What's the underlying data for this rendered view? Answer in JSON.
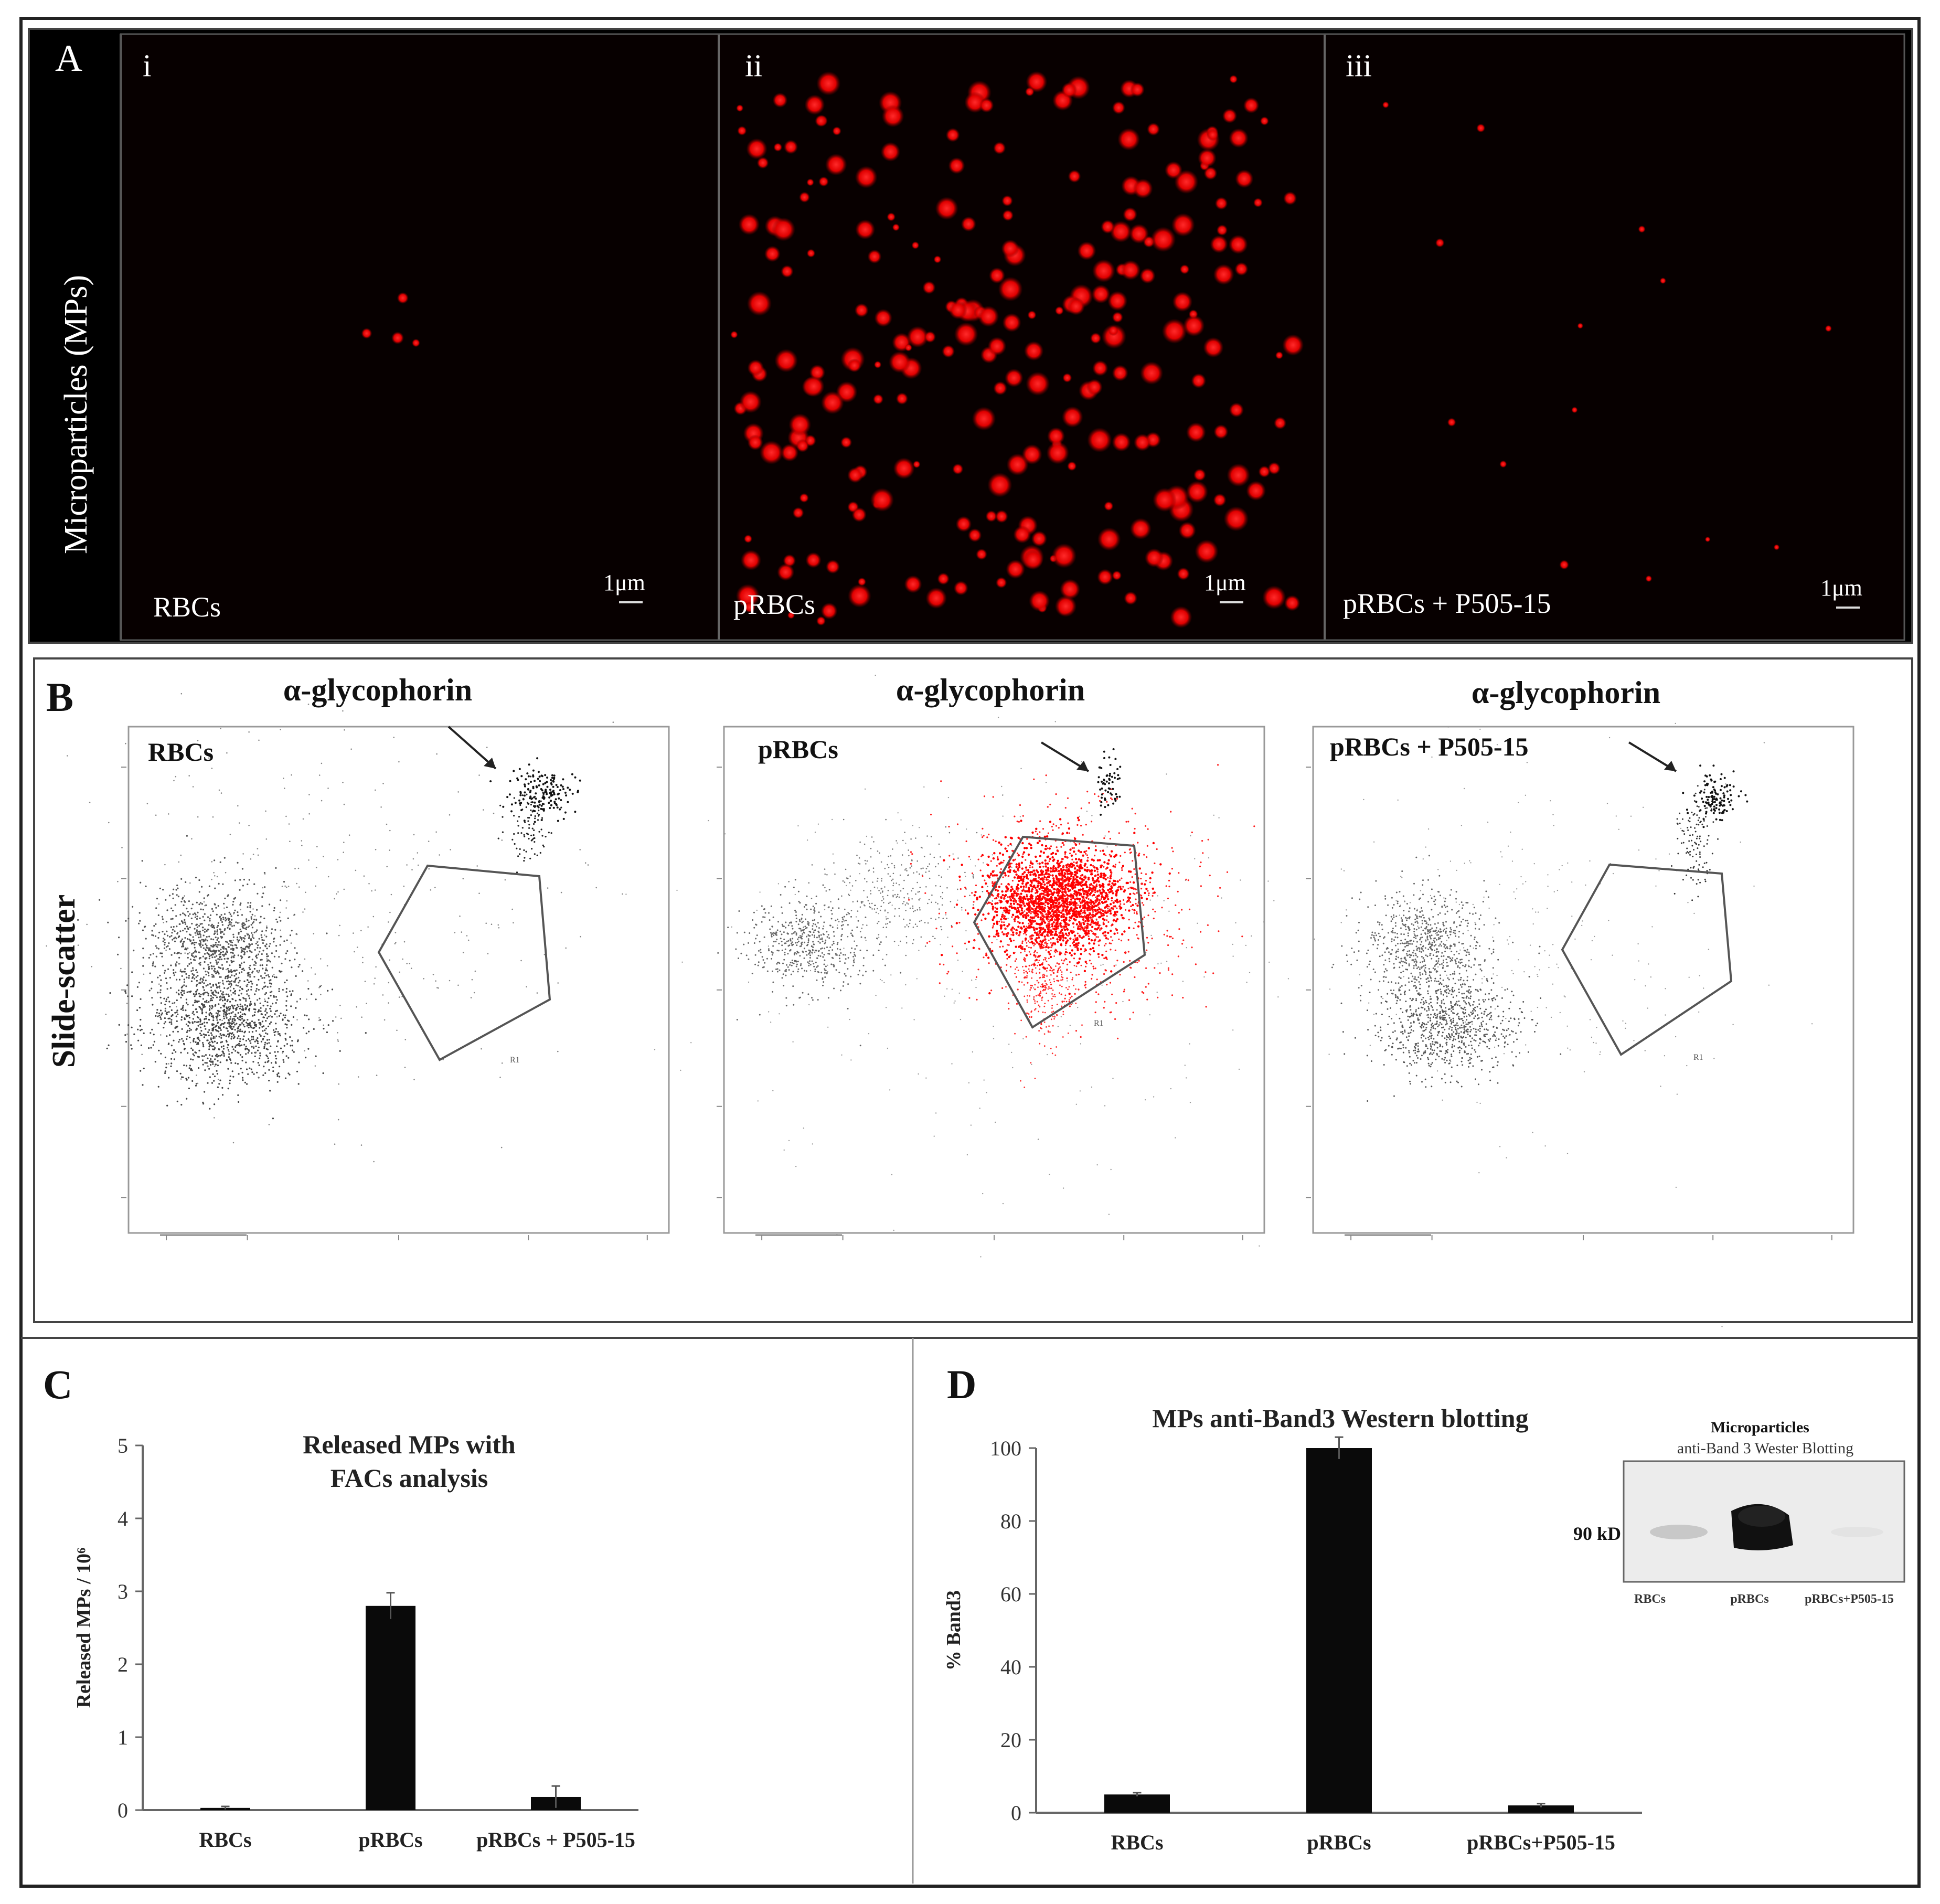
{
  "panelA": {
    "letter": "A",
    "ylabel": "Microparticles (MPs)",
    "subpanels": [
      {
        "roman": "i",
        "label": "RBCs",
        "scale": "1μm",
        "density": "low"
      },
      {
        "roman": "ii",
        "label": "pRBCs",
        "scale": "1μm",
        "density": "high"
      },
      {
        "roman": "iii",
        "label": "pRBCs + P505-15",
        "scale": "1μm",
        "density": "sparse"
      }
    ]
  },
  "panelB": {
    "letter": "B",
    "ylabel": "Slide-scatter",
    "plots": [
      {
        "title": "α-glycophorin",
        "label": "RBCs",
        "gate": "R1"
      },
      {
        "title": "α-glycophorin",
        "label": "pRBCs",
        "gate": "R1"
      },
      {
        "title": "α-glycophorin",
        "label": "pRBCs + P505-15",
        "gate": "R1"
      }
    ]
  },
  "panelC": {
    "letter": "C"
  },
  "panelD": {
    "letter": "D",
    "blot": {
      "title": "Microparticles",
      "subtitle": "anti-Band 3 Wester Blotting",
      "size_label": "90 kD",
      "lanes": [
        "RBCs",
        "pRBCs",
        "pRBCs+P505-15"
      ]
    }
  },
  "chart_data": [
    {
      "type": "bar",
      "title": "Released MPs with FACs analysis",
      "title_lines": [
        "Released MPs with",
        "FACs analysis"
      ],
      "categories": [
        "RBCs",
        "pRBCs",
        "pRBCs + P505-15"
      ],
      "values": [
        0.03,
        2.8,
        0.18
      ],
      "errors": [
        0.02,
        0.18,
        0.15
      ],
      "ylabel": "Released MPs / 10⁶",
      "xlabel": "",
      "ylim": [
        0,
        5
      ],
      "yticks": [
        "0",
        "1",
        "2",
        "3",
        "4",
        "5"
      ]
    },
    {
      "type": "bar",
      "title": "MPs anti-Band3 Western blotting",
      "categories": [
        "RBCs",
        "pRBCs",
        "pRBCs+P505-15"
      ],
      "values": [
        5,
        100,
        2
      ],
      "errors": [
        0.5,
        3,
        0.5
      ],
      "ylabel": "% Band3",
      "xlabel": "",
      "ylim": [
        0,
        100
      ],
      "yticks": [
        "0",
        "20",
        "40",
        "60",
        "80",
        "100"
      ]
    }
  ]
}
